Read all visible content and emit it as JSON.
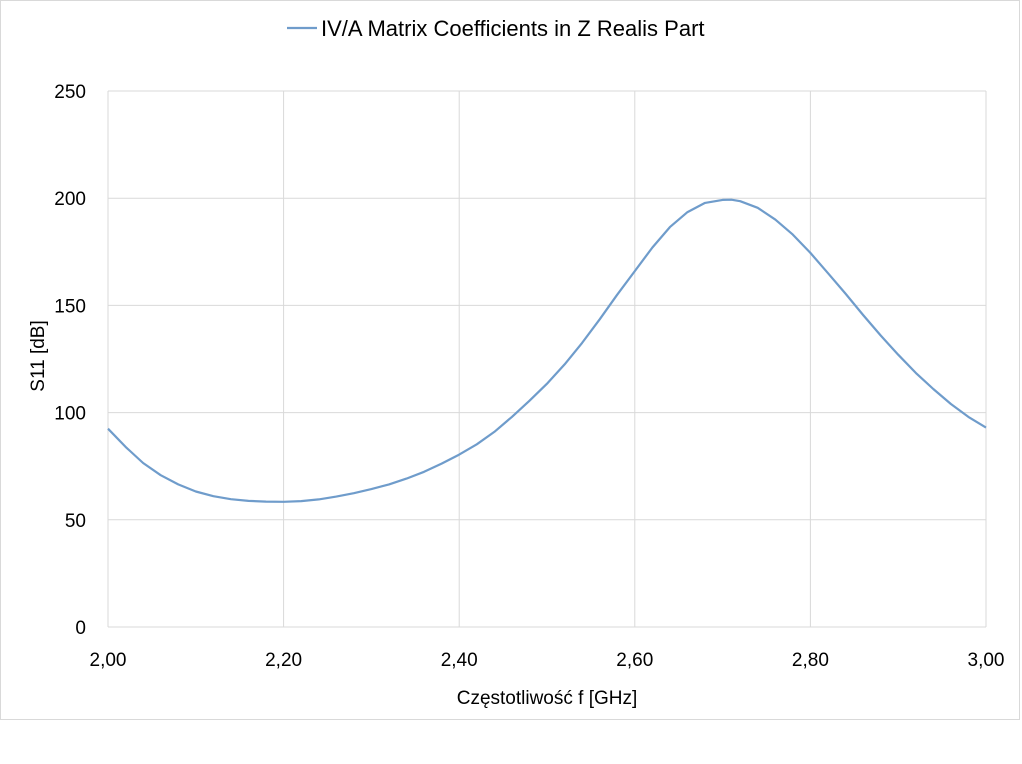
{
  "chart_data": {
    "type": "line",
    "title": "",
    "xlabel": "Częstotliwość f [GHz]",
    "ylabel": "S11 [dB]",
    "xlim": [
      2.0,
      3.0
    ],
    "ylim": [
      0,
      250
    ],
    "x_ticks": [
      "2,00",
      "2,20",
      "2,40",
      "2,60",
      "2,80",
      "3,00"
    ],
    "y_ticks": [
      "0",
      "50",
      "100",
      "150",
      "200",
      "250"
    ],
    "grid": true,
    "legend_position": "top-center",
    "series": [
      {
        "name": "IV/A Matrix Coefficients in Z Realis Part",
        "color": "#6f9ccb",
        "x": [
          2.0,
          2.02,
          2.04,
          2.06,
          2.08,
          2.1,
          2.12,
          2.14,
          2.16,
          2.18,
          2.2,
          2.22,
          2.24,
          2.26,
          2.28,
          2.3,
          2.32,
          2.34,
          2.36,
          2.38,
          2.4,
          2.42,
          2.44,
          2.46,
          2.48,
          2.5,
          2.52,
          2.54,
          2.56,
          2.58,
          2.6,
          2.62,
          2.64,
          2.66,
          2.68,
          2.7,
          2.71,
          2.72,
          2.74,
          2.76,
          2.78,
          2.8,
          2.82,
          2.84,
          2.86,
          2.88,
          2.9,
          2.92,
          2.94,
          2.96,
          2.98,
          3.0
        ],
        "y": [
          92.5,
          84,
          76.5,
          70.8,
          66.5,
          63.2,
          61,
          59.6,
          58.8,
          58.5,
          58.4,
          58.7,
          59.5,
          60.8,
          62.4,
          64.3,
          66.5,
          69.2,
          72.4,
          76.2,
          80.4,
          85.2,
          91,
          98,
          105.5,
          113.5,
          122.5,
          132.5,
          143.5,
          155,
          166,
          177,
          186.5,
          193.5,
          197.8,
          199.2,
          199.3,
          198.6,
          195.5,
          190,
          183,
          174.5,
          165,
          155.5,
          145.5,
          136,
          127,
          118.5,
          111,
          104,
          98,
          93
        ]
      }
    ]
  },
  "colors": {
    "series_line": "#6f9ccb",
    "grid": "#d9d9d9",
    "frame": "#d9d9d9"
  }
}
